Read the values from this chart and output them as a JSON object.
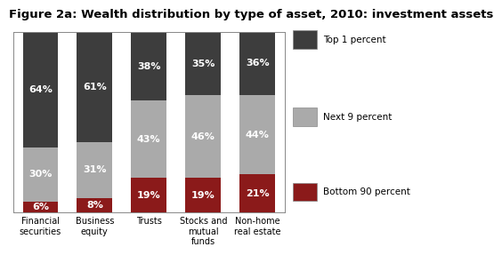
{
  "title": "Figure 2a: Wealth distribution by type of asset, 2010: investment assets",
  "categories": [
    "Financial\nsecurities",
    "Business\nequity",
    "Trusts",
    "Stocks and\nmutual\nfunds",
    "Non-home\nreal estate"
  ],
  "bottom_90": [
    6,
    8,
    19,
    19,
    21
  ],
  "next_9": [
    30,
    31,
    43,
    46,
    44
  ],
  "top_1": [
    64,
    61,
    38,
    35,
    36
  ],
  "colors": {
    "bottom_90": "#8B1A1A",
    "next_9": "#AAAAAA",
    "top_1": "#3D3D3D"
  },
  "legend_labels": [
    "Top 1 percent",
    "Next 9 percent",
    "Bottom 90 percent"
  ],
  "ylim": [
    0,
    100
  ],
  "title_color": "#000000",
  "title_fontsize": 9.5,
  "label_fontsize": 8,
  "bar_width": 0.65,
  "background_color": "#FFFFFF"
}
